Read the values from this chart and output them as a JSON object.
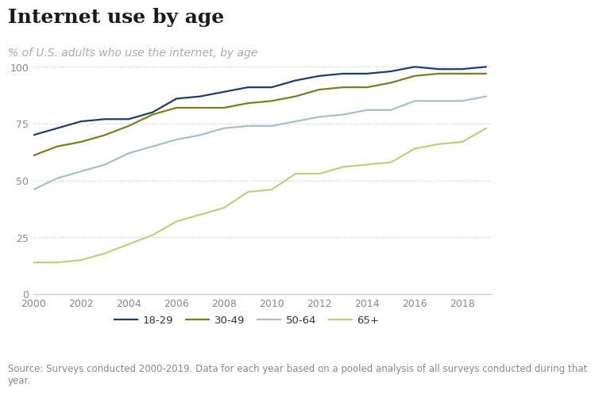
{
  "title": "Internet use by age",
  "subtitle": "% of U.S. adults who use the internet, by age",
  "source": "Source: Surveys conducted 2000-2019. Data for each year based on a pooled analysis of all surveys conducted during that\nyear.",
  "years": [
    2000,
    2001,
    2002,
    2003,
    2004,
    2005,
    2006,
    2007,
    2008,
    2009,
    2010,
    2011,
    2012,
    2013,
    2014,
    2015,
    2016,
    2017,
    2018,
    2019
  ],
  "series": {
    "18-29": [
      70,
      73,
      76,
      77,
      77,
      80,
      86,
      87,
      89,
      91,
      91,
      94,
      96,
      97,
      97,
      98,
      100,
      99,
      99,
      100
    ],
    "30-49": [
      61,
      65,
      67,
      70,
      74,
      79,
      82,
      82,
      82,
      84,
      85,
      87,
      90,
      91,
      91,
      93,
      96,
      97,
      97,
      97
    ],
    "50-64": [
      46,
      51,
      54,
      57,
      62,
      65,
      68,
      70,
      73,
      74,
      74,
      76,
      78,
      79,
      81,
      81,
      85,
      85,
      85,
      87
    ],
    "65+": [
      14,
      14,
      15,
      18,
      22,
      26,
      32,
      35,
      38,
      45,
      46,
      53,
      53,
      56,
      57,
      58,
      64,
      66,
      67,
      73
    ]
  },
  "series_order": [
    "18-29",
    "30-49",
    "50-64",
    "65+"
  ],
  "colors": {
    "18-29": "#1c3f6e",
    "30-49": "#7d7d1e",
    "50-64": "#a8becc",
    "65+": "#c8cc7a"
  },
  "ylim": [
    0,
    105
  ],
  "yticks": [
    0,
    25,
    50,
    75,
    100
  ],
  "xticks": [
    2000,
    2002,
    2004,
    2006,
    2008,
    2010,
    2012,
    2014,
    2016,
    2018
  ],
  "background_color": "#ffffff",
  "grid_color": "#cccccc",
  "title_fontsize": 18,
  "subtitle_fontsize": 10,
  "source_fontsize": 8.5,
  "tick_fontsize": 9,
  "legend_fontsize": 9.5,
  "line_width": 1.6
}
